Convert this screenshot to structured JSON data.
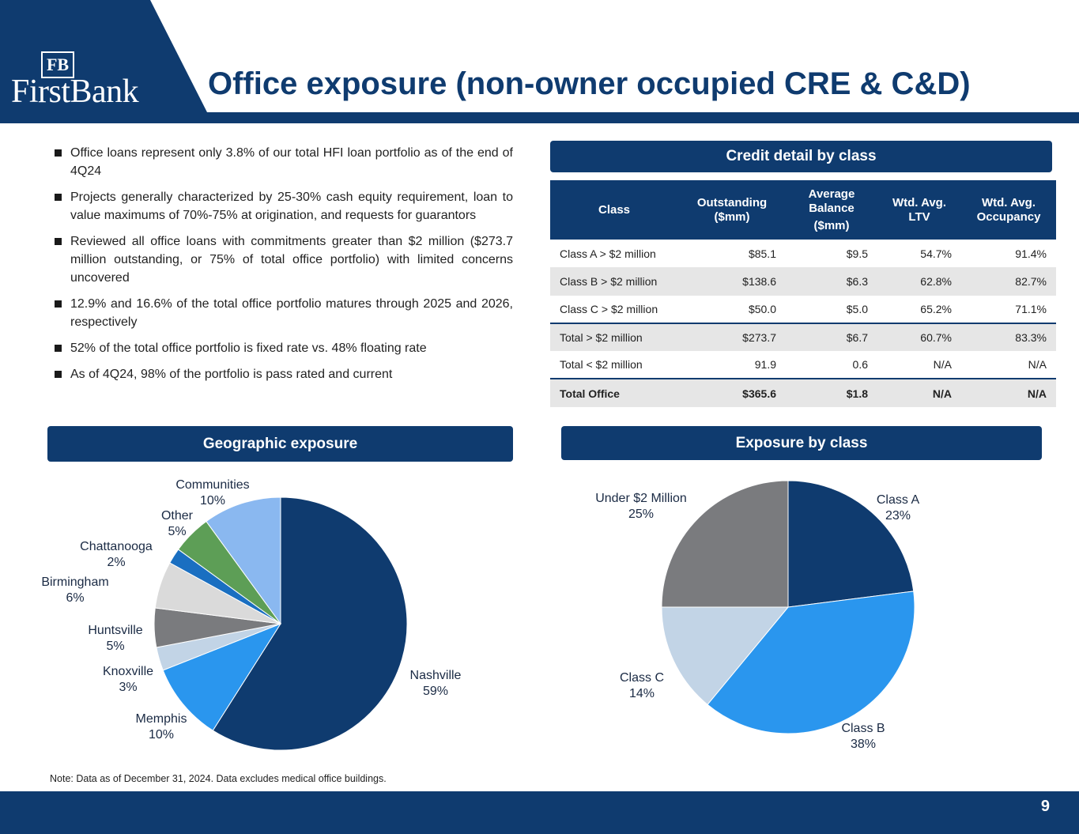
{
  "header": {
    "title": "Office exposure (non-owner occupied CRE & C&D)",
    "logo_text": "FirstBank",
    "logo_mark": "FB"
  },
  "bullets": [
    "Office loans represent only 3.8% of our total HFI loan portfolio as of the end of 4Q24",
    "Projects generally characterized by 25-30% cash equity requirement, loan to value maximums of 70%-75% at origination, and requests for guarantors",
    "Reviewed all office loans with commitments greater than $2 million ($273.7 million outstanding, or 75% of total office portfolio) with limited concerns uncovered",
    "12.9% and 16.6% of the total office portfolio matures through 2025 and 2026, respectively",
    "52% of the total office portfolio is fixed rate vs. 48% floating rate",
    "As of 4Q24, 98% of the portfolio is pass rated and current"
  ],
  "credit_section_title": "Credit detail by class",
  "geo_section_title": "Geographic exposure",
  "class_section_title": "Exposure by class",
  "table": {
    "headers": {
      "class": "Class",
      "outstanding_1": "Outstanding",
      "outstanding_2": "($mm)",
      "avg_1": "Average",
      "avg_2": "Balance",
      "avg_3": "($mm)",
      "ltv_1": "Wtd. Avg.",
      "ltv_2": "LTV",
      "occ_1": "Wtd. Avg.",
      "occ_2": "Occupancy"
    },
    "rows": [
      {
        "class": "Class A > $2 million",
        "outstanding": "$85.1",
        "avg": "$9.5",
        "ltv": "54.7%",
        "occ": "91.4%"
      },
      {
        "class": "Class B > $2 million",
        "outstanding": "$138.6",
        "avg": "$6.3",
        "ltv": "62.8%",
        "occ": "82.7%"
      },
      {
        "class": "Class C > $2 million",
        "outstanding": "$50.0",
        "avg": "$5.0",
        "ltv": "65.2%",
        "occ": "71.1%"
      },
      {
        "class": "Total > $2 million",
        "outstanding": "$273.7",
        "avg": "$6.7",
        "ltv": "60.7%",
        "occ": "83.3%"
      },
      {
        "class": "Total < $2 million",
        "outstanding": "91.9",
        "avg": "0.6",
        "ltv": "N/A",
        "occ": "N/A"
      },
      {
        "class": "Total Office",
        "outstanding": "$365.6",
        "avg": "$1.8",
        "ltv": "N/A",
        "occ": "N/A"
      }
    ]
  },
  "note": "Note: Data as of December 31, 2024. Data excludes medical office buildings.",
  "page_number": "9",
  "colors": {
    "navy": "#0f3b6f",
    "blue": "#2a96ee",
    "light_blue": "#c2d4e6",
    "gray": "#7a7b7e",
    "light_gray": "#dadada",
    "mid_blue": "#1a6fc1",
    "green": "#5d9e56",
    "sky": "#8ab8f0"
  },
  "chart_data": [
    {
      "type": "pie",
      "title": "Geographic exposure",
      "slices": [
        {
          "label": "Nashville",
          "value": 59,
          "pct_label": "59%",
          "color": "#0f3b6f"
        },
        {
          "label": "Memphis",
          "value": 10,
          "pct_label": "10%",
          "color": "#2a96ee"
        },
        {
          "label": "Knoxville",
          "value": 3,
          "pct_label": "3%",
          "color": "#c2d4e6"
        },
        {
          "label": "Huntsville",
          "value": 5,
          "pct_label": "5%",
          "color": "#7a7b7e"
        },
        {
          "label": "Birmingham",
          "value": 6,
          "pct_label": "6%",
          "color": "#dadada"
        },
        {
          "label": "Chattanooga",
          "value": 2,
          "pct_label": "2%",
          "color": "#1a6fc1"
        },
        {
          "label": "Other",
          "value": 5,
          "pct_label": "5%",
          "color": "#5d9e56"
        },
        {
          "label": "Communities",
          "value": 10,
          "pct_label": "10%",
          "color": "#8ab8f0"
        }
      ]
    },
    {
      "type": "pie",
      "title": "Exposure by class",
      "slices": [
        {
          "label": "Class A",
          "value": 23,
          "pct_label": "23%",
          "color": "#0f3b6f"
        },
        {
          "label": "Class B",
          "value": 38,
          "pct_label": "38%",
          "color": "#2a96ee"
        },
        {
          "label": "Class C",
          "value": 14,
          "pct_label": "14%",
          "color": "#c2d4e6"
        },
        {
          "label": "Under $2 Million",
          "value": 25,
          "pct_label": "25%",
          "color": "#7a7b7e"
        }
      ]
    }
  ]
}
